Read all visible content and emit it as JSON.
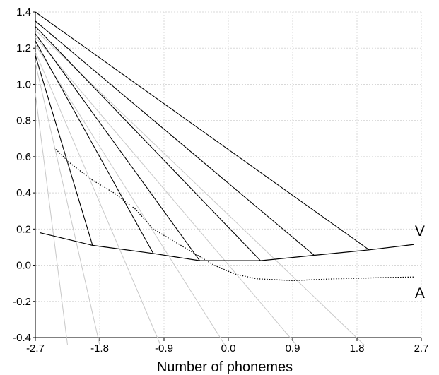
{
  "chart_data": {
    "type": "line",
    "title": "",
    "xlabel": "Number of phonemes",
    "ylabel": "",
    "xlim": [
      -2.7,
      2.7
    ],
    "ylim": [
      -0.4,
      1.4
    ],
    "x_ticks": [
      "-2.7",
      "-1.8",
      "-0.9",
      "0.0",
      "0.9",
      "1.8",
      "2.7"
    ],
    "y_ticks": [
      "-0.4",
      "-0.2",
      "0.0",
      "0.2",
      "0.4",
      "0.6",
      "0.8",
      "1.0",
      "1.2",
      "1.4"
    ],
    "grid": true,
    "series": [
      {
        "name": "V",
        "style": "solid",
        "color": "#000000",
        "points": [
          [
            -2.64,
            0.18
          ],
          [
            -1.9,
            0.11
          ],
          [
            -1.05,
            0.065
          ],
          [
            -0.4,
            0.025
          ],
          [
            0.45,
            0.025
          ],
          [
            1.2,
            0.055
          ],
          [
            1.97,
            0.085
          ],
          [
            2.6,
            0.115
          ]
        ]
      },
      {
        "name": "A",
        "style": "dotted",
        "color": "#000000",
        "points": [
          [
            -2.44,
            0.65
          ],
          [
            -2.2,
            0.56
          ],
          [
            -1.9,
            0.47
          ],
          [
            -1.6,
            0.4
          ],
          [
            -1.3,
            0.31
          ],
          [
            -1.05,
            0.2
          ],
          [
            -0.75,
            0.13
          ],
          [
            -0.45,
            0.06
          ],
          [
            -0.2,
            0.0
          ],
          [
            0.1,
            -0.05
          ],
          [
            0.4,
            -0.075
          ],
          [
            0.9,
            -0.085
          ],
          [
            1.5,
            -0.075
          ],
          [
            2.0,
            -0.07
          ],
          [
            2.6,
            -0.065
          ]
        ]
      }
    ],
    "black_lines": [
      {
        "x1": -2.7,
        "y1": 1.16,
        "x2": -1.9,
        "y2": 0.11
      },
      {
        "x1": -2.7,
        "y1": 1.24,
        "x2": -1.05,
        "y2": 0.065
      },
      {
        "x1": -2.7,
        "y1": 1.28,
        "x2": -0.4,
        "y2": 0.025
      },
      {
        "x1": -2.7,
        "y1": 1.32,
        "x2": 0.45,
        "y2": 0.025
      },
      {
        "x1": -2.7,
        "y1": 1.35,
        "x2": 1.2,
        "y2": 0.055
      },
      {
        "x1": -2.7,
        "y1": 1.4,
        "x2": 1.97,
        "y2": 0.085
      }
    ],
    "grey_lines": [
      {
        "x1": -2.7,
        "y1": 1.3,
        "x2": 1.9,
        "y2": -0.44
      },
      {
        "x1": -2.7,
        "y1": 1.26,
        "x2": 0.95,
        "y2": -0.44
      },
      {
        "x1": -2.7,
        "y1": 1.22,
        "x2": -0.05,
        "y2": -0.44
      },
      {
        "x1": -2.7,
        "y1": 1.18,
        "x2": -0.95,
        "y2": -0.44
      },
      {
        "x1": -2.7,
        "y1": 1.12,
        "x2": -1.8,
        "y2": -0.44
      },
      {
        "x1": -2.7,
        "y1": 0.95,
        "x2": -2.25,
        "y2": -0.44
      }
    ],
    "colors": {
      "main": "#000000",
      "grid": "#d8d8d8",
      "secondary": "#c8c8c8"
    }
  }
}
